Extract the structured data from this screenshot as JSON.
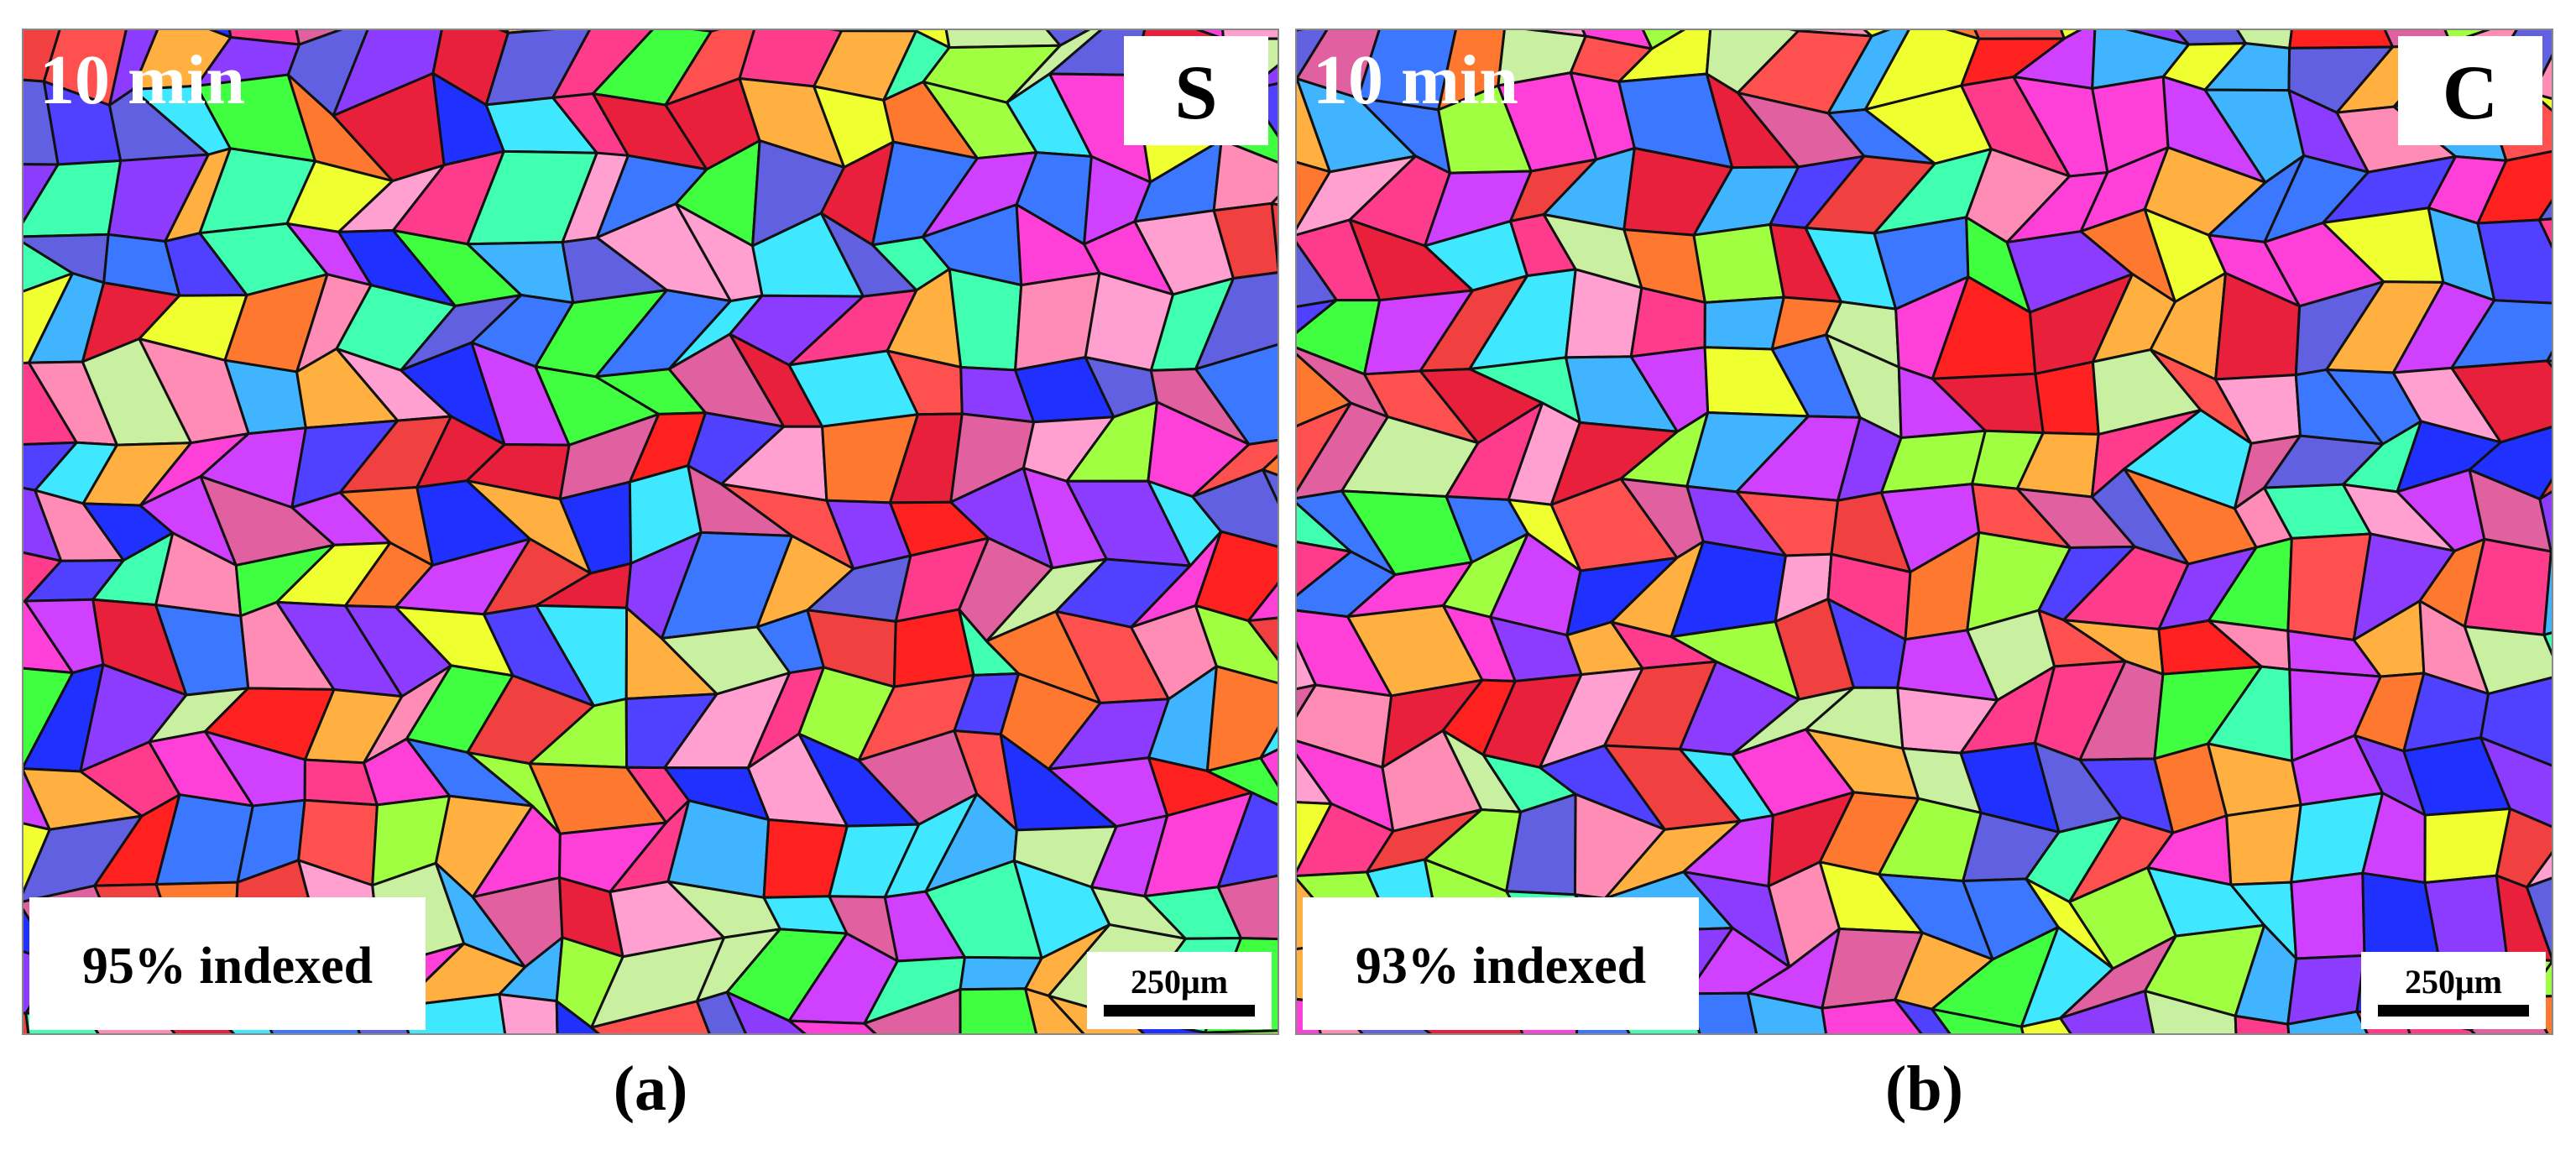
{
  "panels": [
    {
      "time": "10 min",
      "letter": "S",
      "indexed": "95% indexed",
      "scale": "250μm",
      "caption": "(a)"
    },
    {
      "time": "10 min",
      "letter": "C",
      "indexed": "93% indexed",
      "scale": "250μm",
      "caption": "(b)"
    }
  ]
}
